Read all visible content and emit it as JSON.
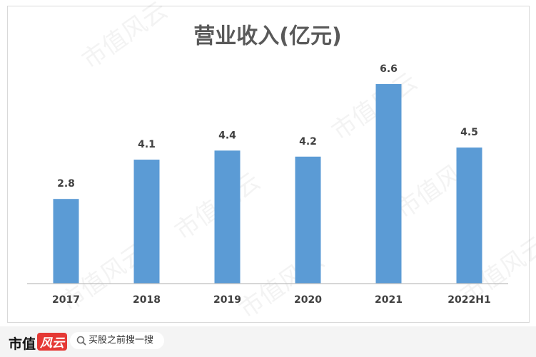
{
  "chart_data": {
    "type": "bar",
    "title": "营业收入(亿元)",
    "categories": [
      "2017",
      "2018",
      "2019",
      "2020",
      "2021",
      "2022H1"
    ],
    "values": [
      2.8,
      4.1,
      4.4,
      4.2,
      6.6,
      4.5
    ],
    "color": "#5b9bd5",
    "ylim": [
      0,
      7
    ]
  },
  "watermark": "市值风云",
  "footer": {
    "brand": "市值",
    "brand_mark": "风云",
    "search": "买股之前搜一搜"
  }
}
